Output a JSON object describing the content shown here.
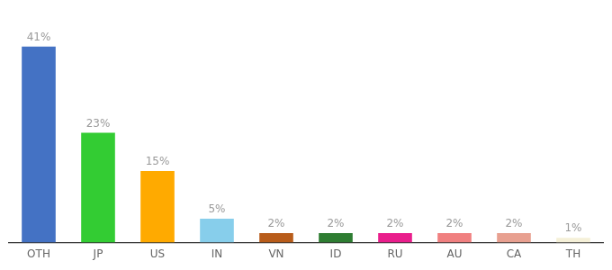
{
  "chart_data": {
    "type": "bar",
    "categories": [
      "OTH",
      "JP",
      "US",
      "IN",
      "VN",
      "ID",
      "RU",
      "AU",
      "CA",
      "TH"
    ],
    "values": [
      41,
      23,
      15,
      5,
      2,
      2,
      2,
      2,
      2,
      1
    ],
    "value_labels": [
      "41%",
      "23%",
      "15%",
      "5%",
      "2%",
      "2%",
      "2%",
      "2%",
      "2%",
      "1%"
    ],
    "colors": [
      "#4472c4",
      "#33cc33",
      "#ffaa00",
      "#87ceeb",
      "#b85c1a",
      "#2e7d32",
      "#e91e8c",
      "#f08080",
      "#e8a090",
      "#f5f0d8"
    ],
    "ylim": [
      0,
      47
    ],
    "data_labels": true,
    "tick_labels": "x",
    "grid": false
  }
}
